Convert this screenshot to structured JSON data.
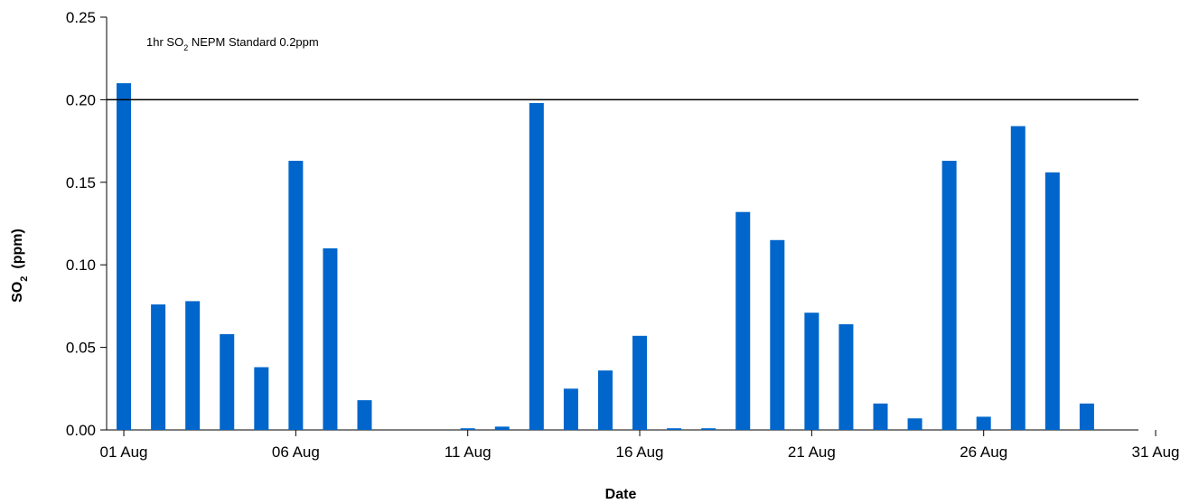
{
  "chart_data": {
    "type": "bar",
    "xlabel": "Date",
    "ylabel": "SO",
    "ylabel_sub": "2",
    "ylabel_unit": "(ppm)",
    "ylim": [
      0,
      0.25
    ],
    "yticks": [
      "0.00",
      "0.05",
      "0.10",
      "0.15",
      "0.20",
      "0.25"
    ],
    "xticks": [
      "01 Aug",
      "06 Aug",
      "11 Aug",
      "16 Aug",
      "21 Aug",
      "26 Aug",
      "31 Aug"
    ],
    "grid": false,
    "bar_color": "#0066CC",
    "categories": [
      "01 Aug",
      "02 Aug",
      "03 Aug",
      "04 Aug",
      "05 Aug",
      "06 Aug",
      "07 Aug",
      "08 Aug",
      "09 Aug",
      "10 Aug",
      "11 Aug",
      "12 Aug",
      "13 Aug",
      "14 Aug",
      "15 Aug",
      "16 Aug",
      "17 Aug",
      "18 Aug",
      "19 Aug",
      "20 Aug",
      "21 Aug",
      "22 Aug",
      "23 Aug",
      "24 Aug",
      "25 Aug",
      "26 Aug",
      "27 Aug",
      "28 Aug",
      "29 Aug",
      "30 Aug"
    ],
    "values": [
      0.21,
      0.076,
      0.078,
      0.058,
      0.038,
      0.163,
      0.11,
      0.018,
      0.0,
      0.0,
      0.001,
      0.002,
      0.198,
      0.025,
      0.036,
      0.057,
      0.001,
      0.001,
      0.132,
      0.115,
      0.071,
      0.064,
      0.016,
      0.007,
      0.163,
      0.008,
      0.184,
      0.156,
      0.016,
      0.0
    ],
    "reference_line": {
      "value": 0.2,
      "label_pre": "1hr SO",
      "label_sub": "2",
      "label_post": " NEPM Standard 0.2ppm",
      "color": "#000000"
    }
  }
}
